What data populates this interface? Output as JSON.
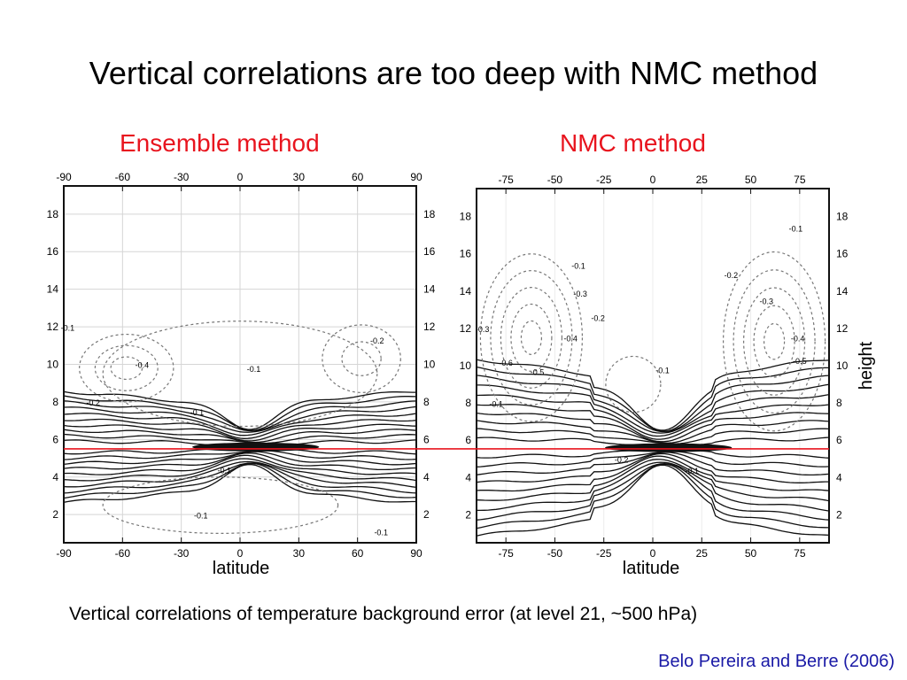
{
  "slide": {
    "title": "Vertical correlations are too deep with NMC method",
    "caption": "Vertical correlations of temperature background error (at level 21, ~500 hPa)",
    "credit": "Belo Pereira and Berre (2006)"
  },
  "colors": {
    "panel_label": "#e8141e",
    "credit": "#1a1aa6",
    "reference_line": "#e8141e"
  },
  "chart_data": [
    {
      "type": "contour",
      "panel_title": "Ensemble method",
      "x_ticks": [
        "-90",
        "-60",
        "-30",
        "0",
        "30",
        "60",
        "90"
      ],
      "x_tick_values": [
        -90,
        -60,
        -30,
        0,
        30,
        60,
        90
      ],
      "xlim": [
        -90,
        90
      ],
      "y_ticks": [
        "2",
        "4",
        "6",
        "8",
        "10",
        "12",
        "14",
        "16",
        "18"
      ],
      "y_tick_values": [
        2,
        4,
        6,
        8,
        10,
        12,
        14,
        16,
        18
      ],
      "ylim": [
        0.5,
        19.5
      ],
      "xlabel": "latitude",
      "ylabel": "",
      "reference_level": 5.5,
      "positive_band_center": 5.6,
      "contour_labels": [
        {
          "text": "-0.1",
          "lat": -88,
          "h": 11.8
        },
        {
          "text": "-0.4",
          "lat": -50,
          "h": 9.8
        },
        {
          "text": "-0.2",
          "lat": -75,
          "h": 7.8
        },
        {
          "text": "-0.1",
          "lat": -22,
          "h": 7.3
        },
        {
          "text": "-0.1",
          "lat": 7,
          "h": 9.6
        },
        {
          "text": "-0.2",
          "lat": 70,
          "h": 11.1
        },
        {
          "text": "-0.1",
          "lat": -8,
          "h": 4.2
        },
        {
          "text": "-0.1",
          "lat": -20,
          "h": 1.8
        },
        {
          "text": "-0.1",
          "lat": 72,
          "h": 0.9
        }
      ]
    },
    {
      "type": "contour",
      "panel_title": "NMC method",
      "x_ticks": [
        "-75",
        "-50",
        "-25",
        "0",
        "25",
        "50",
        "75"
      ],
      "x_tick_values": [
        -75,
        -50,
        -25,
        0,
        25,
        50,
        75
      ],
      "xlim": [
        -90,
        90
      ],
      "y_ticks": [
        "2",
        "4",
        "6",
        "8",
        "10",
        "12",
        "14",
        "16",
        "18"
      ],
      "y_tick_values": [
        2,
        4,
        6,
        8,
        10,
        12,
        14,
        16,
        18
      ],
      "ylim": [
        0.5,
        19.5
      ],
      "xlabel": "latitude",
      "ylabel": "height",
      "reference_level": 5.5,
      "positive_band_center": 5.6,
      "contour_labels": [
        {
          "text": "-0.3",
          "lat": -87,
          "h": 11.8
        },
        {
          "text": "-0.1",
          "lat": -38,
          "h": 15.2
        },
        {
          "text": "-0.3",
          "lat": -37,
          "h": 13.7
        },
        {
          "text": "-0.2",
          "lat": -28,
          "h": 12.4
        },
        {
          "text": "-0.4",
          "lat": -42,
          "h": 11.3
        },
        {
          "text": "-0.6",
          "lat": -75,
          "h": 10.0
        },
        {
          "text": "-0.5",
          "lat": -59,
          "h": 9.5
        },
        {
          "text": "-0.1",
          "lat": -80,
          "h": 7.8
        },
        {
          "text": "-0.1",
          "lat": 5,
          "h": 9.6
        },
        {
          "text": "-0.1",
          "lat": 73,
          "h": 17.2
        },
        {
          "text": "-0.2",
          "lat": 40,
          "h": 14.7
        },
        {
          "text": "-0.3",
          "lat": 58,
          "h": 13.3
        },
        {
          "text": "-0.4",
          "lat": 74,
          "h": 11.3
        },
        {
          "text": "-0.5",
          "lat": 75,
          "h": 10.1
        },
        {
          "text": "-0.2",
          "lat": -16,
          "h": 4.8
        },
        {
          "text": "-0.1",
          "lat": 20,
          "h": 4.2
        }
      ]
    }
  ]
}
